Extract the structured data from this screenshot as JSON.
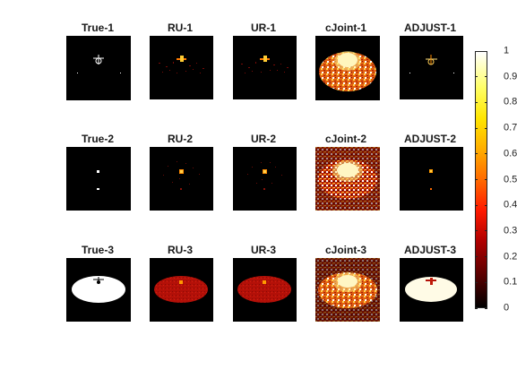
{
  "panels": [
    {
      "title": "True-1"
    },
    {
      "title": "RU-1"
    },
    {
      "title": "UR-1"
    },
    {
      "title": "cJoint-1"
    },
    {
      "title": "ADJUST-1"
    },
    {
      "title": "True-2"
    },
    {
      "title": "RU-2"
    },
    {
      "title": "UR-2"
    },
    {
      "title": "cJoint-2"
    },
    {
      "title": "ADJUST-2"
    },
    {
      "title": "True-3"
    },
    {
      "title": "RU-3"
    },
    {
      "title": "UR-3"
    },
    {
      "title": "cJoint-3"
    },
    {
      "title": "ADJUST-3"
    }
  ],
  "colorbar": {
    "ticks": [
      "0",
      "0.1",
      "0.2",
      "0.3",
      "0.4",
      "0.5",
      "0.6",
      "0.7",
      "0.8",
      "0.9",
      "1"
    ],
    "range": [
      0,
      1
    ],
    "colormap": "hot"
  },
  "colors": {
    "background": "#000000",
    "dark_red": "#b0100c",
    "white": "#ffffff",
    "orange": "#ff8c00",
    "yellow": "#ffe400"
  }
}
